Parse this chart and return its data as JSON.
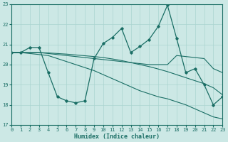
{
  "xlabel": "Humidex (Indice chaleur)",
  "xlim": [
    0,
    23
  ],
  "ylim": [
    17,
    23
  ],
  "yticks": [
    17,
    18,
    19,
    20,
    21,
    22,
    23
  ],
  "xticks": [
    0,
    1,
    2,
    3,
    4,
    5,
    6,
    7,
    8,
    9,
    10,
    11,
    12,
    13,
    14,
    15,
    16,
    17,
    18,
    19,
    20,
    21,
    22,
    23
  ],
  "bg_color": "#cce8e5",
  "grid_color": "#aad4d0",
  "line_color": "#1a6e65",
  "line1_x": [
    0,
    1,
    2,
    3,
    4,
    5,
    6,
    7,
    8,
    9,
    10,
    11,
    12,
    13,
    14,
    15,
    16,
    17,
    18,
    19,
    20,
    21,
    22,
    23
  ],
  "line1_y": [
    20.6,
    20.6,
    20.85,
    20.85,
    19.6,
    18.4,
    18.2,
    18.1,
    18.2,
    20.3,
    21.05,
    21.35,
    21.8,
    20.6,
    20.9,
    21.25,
    21.9,
    22.95,
    21.3,
    19.6,
    19.8,
    19.0,
    18.0,
    18.4
  ],
  "line2_x": [
    0,
    1,
    2,
    3,
    4,
    5,
    6,
    7,
    8,
    9,
    10,
    11,
    12,
    13,
    14,
    15,
    16,
    17,
    18,
    19,
    20,
    21,
    22,
    23
  ],
  "line2_y": [
    20.6,
    20.6,
    20.6,
    20.6,
    20.55,
    20.5,
    20.45,
    20.4,
    20.35,
    20.3,
    20.25,
    20.2,
    20.15,
    20.1,
    20.05,
    20.0,
    20.0,
    20.0,
    20.45,
    20.4,
    20.35,
    20.3,
    19.8,
    19.6
  ],
  "line3_x": [
    0,
    1,
    2,
    3,
    4,
    5,
    6,
    7,
    8,
    9,
    10,
    11,
    12,
    13,
    14,
    15,
    16,
    17,
    18,
    19,
    20,
    21,
    22,
    23
  ],
  "line3_y": [
    20.6,
    20.6,
    20.55,
    20.5,
    20.45,
    20.3,
    20.15,
    20.0,
    19.85,
    19.7,
    19.5,
    19.3,
    19.1,
    18.9,
    18.7,
    18.55,
    18.4,
    18.3,
    18.15,
    18.0,
    17.8,
    17.6,
    17.4,
    17.3
  ],
  "line4_x": [
    0,
    1,
    2,
    3,
    4,
    5,
    6,
    7,
    8,
    9,
    10,
    11,
    12,
    13,
    14,
    15,
    16,
    17,
    18,
    19,
    20,
    21,
    22,
    23
  ],
  "line4_y": [
    20.6,
    20.6,
    20.6,
    20.6,
    20.58,
    20.55,
    20.52,
    20.48,
    20.44,
    20.4,
    20.35,
    20.28,
    20.2,
    20.1,
    20.0,
    19.9,
    19.78,
    19.65,
    19.5,
    19.35,
    19.2,
    19.05,
    18.85,
    18.5
  ]
}
